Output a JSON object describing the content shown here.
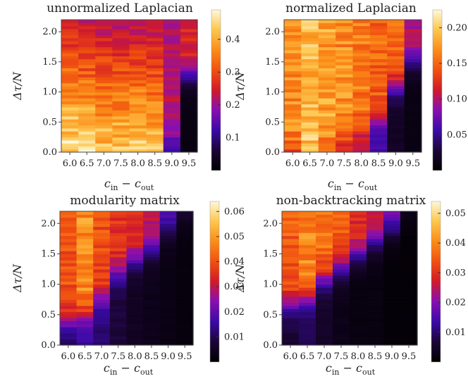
{
  "chart_data": [
    {
      "type": "heatmap",
      "title": "unnormalized Laplacian",
      "xlabel": "c_in − c_out",
      "ylabel": "Δτ/N",
      "x_categories": [
        "6.0",
        "6.5",
        "7.0",
        "7.5",
        "8.0",
        "8.5",
        "9.0",
        "9.5"
      ],
      "y_ticks": [
        "0.0",
        "0.5",
        "1.0",
        "1.5",
        "2.0"
      ],
      "y_range": [
        0.0,
        2.2
      ],
      "colorbar": {
        "ticks": [
          "0.1",
          "0.2",
          "0.3",
          "0.4"
        ],
        "values": [
          0.1,
          0.2,
          0.3,
          0.4
        ],
        "range": [
          0.0,
          0.49
        ]
      },
      "column_bottom_values": [
        0.47,
        0.46,
        0.44,
        0.44,
        0.45,
        0.43,
        0.09,
        0.02
      ],
      "column_top_values": [
        0.24,
        0.23,
        0.22,
        0.21,
        0.22,
        0.22,
        0.22,
        0.26
      ],
      "column_transition_dt": [
        null,
        null,
        null,
        null,
        null,
        null,
        0.2,
        1.3
      ]
    },
    {
      "type": "heatmap",
      "title": "normalized Laplacian",
      "xlabel": "c_in − c_out",
      "ylabel": "Δτ/N",
      "x_categories": [
        "6.0",
        "6.5",
        "7.0",
        "7.5",
        "8.0",
        "8.5",
        "9.0",
        "9.5"
      ],
      "y_ticks": [
        "0.0",
        "0.5",
        "1.0",
        "1.5",
        "2.0"
      ],
      "y_range": [
        0.0,
        2.2
      ],
      "colorbar": {
        "ticks": [
          "0.05",
          "0.10",
          "0.15",
          "0.20"
        ],
        "values": [
          0.05,
          0.1,
          0.15,
          0.2
        ],
        "range": [
          0.0,
          0.225
        ]
      },
      "column_bottom_values": [
        0.12,
        0.2,
        0.14,
        0.12,
        0.1,
        0.06,
        0.02,
        0.01
      ],
      "column_top_values": [
        0.17,
        0.19,
        0.18,
        0.17,
        0.16,
        0.15,
        0.15,
        0.1
      ],
      "column_transition_dt": [
        0.1,
        0.1,
        0.2,
        0.3,
        0.4,
        0.6,
        1.1,
        1.5
      ]
    },
    {
      "type": "heatmap",
      "title": "modularity matrix",
      "xlabel": "c_in − c_out",
      "ylabel": "Δτ/N",
      "x_categories": [
        "6.0",
        "6.5",
        "7.0",
        "7.5",
        "8.0",
        "8.5",
        "9.0",
        "9.5"
      ],
      "y_ticks": [
        "0.0",
        "0.5",
        "1.0",
        "1.5",
        "2.0"
      ],
      "y_range": [
        0.0,
        2.2
      ],
      "colorbar": {
        "ticks": [
          "0.01",
          "0.02",
          "0.03",
          "0.04",
          "0.05",
          "0.06"
        ],
        "values": [
          0.01,
          0.02,
          0.03,
          0.04,
          0.05,
          0.06
        ],
        "range": [
          0.0,
          0.064
        ]
      },
      "column_bottom_values": [
        0.01,
        0.015,
        0.012,
        0.008,
        0.005,
        0.004,
        0.003,
        0.002
      ],
      "column_top_values": [
        0.04,
        0.048,
        0.04,
        0.036,
        0.034,
        0.03,
        0.02,
        0.01
      ],
      "column_transition_dt": [
        0.4,
        0.5,
        0.8,
        1.2,
        1.4,
        1.6,
        1.9,
        2.1
      ]
    },
    {
      "type": "heatmap",
      "title": "non-backtracking matrix",
      "xlabel": "c_in − c_out",
      "ylabel": "Δτ/N",
      "x_categories": [
        "6.0",
        "6.5",
        "7.0",
        "7.5",
        "8.0",
        "8.5",
        "9.0",
        "9.5"
      ],
      "y_ticks": [
        "0.0",
        "0.5",
        "1.0",
        "1.5",
        "2.0"
      ],
      "y_range": [
        0.0,
        2.2
      ],
      "colorbar": {
        "ticks": [
          "0.01",
          "0.02",
          "0.03",
          "0.04",
          "0.05"
        ],
        "values": [
          0.01,
          0.02,
          0.03,
          0.04,
          0.05
        ],
        "range": [
          0.0,
          0.054
        ]
      },
      "column_bottom_values": [
        0.006,
        0.008,
        0.005,
        0.003,
        0.002,
        0.002,
        0.001,
        0.001
      ],
      "column_top_values": [
        0.035,
        0.04,
        0.037,
        0.034,
        0.03,
        0.026,
        0.02,
        0.004
      ],
      "column_transition_dt": [
        0.7,
        0.8,
        1.1,
        1.3,
        1.5,
        1.7,
        1.9,
        2.1
      ]
    }
  ]
}
